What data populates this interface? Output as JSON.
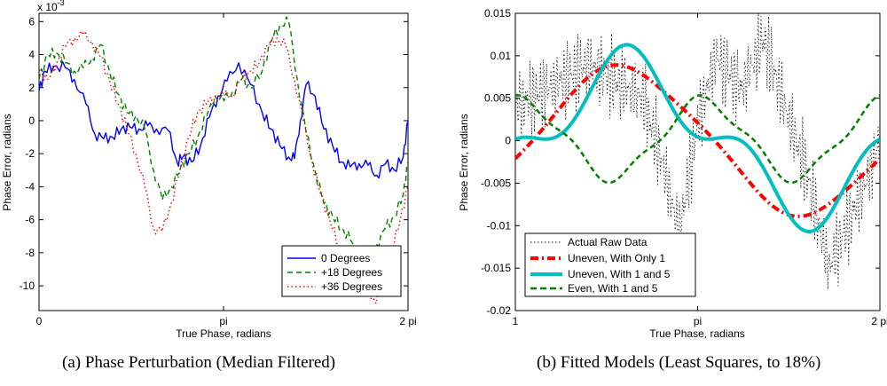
{
  "chart_data": [
    {
      "id": "a",
      "type": "line",
      "caption": "(a)  Phase Perturbation (Median Filtered)",
      "xlabel": "True Phase, radians",
      "ylabel": "Phase Error, radians",
      "exponent_label": "x 10",
      "exponent_power": "-3",
      "xlim": [
        0,
        6.2832
      ],
      "ylim": [
        -11.5,
        6.5
      ],
      "xticks": [
        {
          "v": 0,
          "label": "0"
        },
        {
          "v": 3.1416,
          "label": "pi"
        },
        {
          "v": 6.2832,
          "label": "2 pi"
        }
      ],
      "yticks": [
        {
          "v": 6,
          "label": "6"
        },
        {
          "v": 4,
          "label": "4"
        },
        {
          "v": 2,
          "label": "2"
        },
        {
          "v": 0,
          "label": "0"
        },
        {
          "v": -2,
          "label": "-2"
        },
        {
          "v": -4,
          "label": "-4"
        },
        {
          "v": -6,
          "label": "-6"
        },
        {
          "v": -8,
          "label": "-8"
        },
        {
          "v": -10,
          "label": "-10"
        }
      ],
      "legend_position": "bottom-right",
      "series": [
        {
          "name": "0 Degrees",
          "color": "#0000ff",
          "dash": "solid",
          "x": [
            0,
            0.1,
            0.25,
            0.45,
            0.6,
            0.8,
            0.95,
            1.1,
            1.25,
            1.4,
            1.55,
            1.7,
            1.85,
            2.0,
            2.2,
            2.35,
            2.45,
            2.6,
            2.75,
            2.9,
            3.05,
            3.2,
            3.4,
            3.6,
            3.8,
            3.95,
            4.1,
            4.25,
            4.35,
            4.45,
            4.55,
            4.7,
            4.85,
            5.0,
            5.15,
            5.3,
            5.45,
            5.6,
            5.75,
            5.9,
            6.05,
            6.2,
            6.2832
          ],
          "y": [
            1.8,
            3.0,
            3.3,
            3.2,
            2.5,
            1.0,
            -0.8,
            -1.1,
            -1.0,
            -0.5,
            -0.4,
            -0.5,
            -0.3,
            -0.5,
            -0.6,
            -2.5,
            -2.2,
            -2.5,
            -1.5,
            0.2,
            1.5,
            2.4,
            3.5,
            2.2,
            0.5,
            -0.5,
            -1.5,
            -2.2,
            -2.3,
            0.0,
            2.2,
            1.5,
            -0.5,
            -1.5,
            -2.5,
            -2.8,
            -2.6,
            -2.7,
            -3.3,
            -2.6,
            -3.0,
            -2.2,
            0.0
          ]
        },
        {
          "name": "+18 Degrees",
          "color": "#008000",
          "dash": "dashed",
          "x": [
            0,
            0.15,
            0.3,
            0.45,
            0.6,
            0.75,
            0.9,
            1.05,
            1.2,
            1.35,
            1.5,
            1.65,
            1.8,
            1.95,
            2.1,
            2.25,
            2.4,
            2.55,
            2.7,
            2.85,
            3.0,
            3.15,
            3.3,
            3.45,
            3.6,
            3.8,
            3.95,
            4.1,
            4.25,
            4.4,
            4.55,
            4.7,
            4.85,
            5.0,
            5.15,
            5.3,
            5.45,
            5.6,
            5.75,
            5.9,
            6.05,
            6.2,
            6.2832
          ],
          "y": [
            2.5,
            4.0,
            4.1,
            3.5,
            3.0,
            3.2,
            3.8,
            4.6,
            3.0,
            1.6,
            0.5,
            0.3,
            -0.5,
            -3.0,
            -4.8,
            -4.0,
            -3.0,
            -2.0,
            -1.0,
            0.2,
            1.5,
            1.2,
            1.8,
            2.5,
            2.0,
            3.0,
            4.8,
            5.8,
            6.0,
            2.5,
            -0.8,
            -3.0,
            -5.0,
            -5.8,
            -6.5,
            -7.2,
            -8.5,
            -8.8,
            -7.5,
            -6.5,
            -5.8,
            -4.5,
            -2.5
          ]
        },
        {
          "name": "+36 Degrees",
          "color": "#ff0000",
          "dash": "dotted",
          "x": [
            0,
            0.15,
            0.3,
            0.45,
            0.6,
            0.75,
            0.9,
            1.05,
            1.2,
            1.35,
            1.5,
            1.65,
            1.8,
            1.95,
            2.1,
            2.25,
            2.4,
            2.55,
            2.7,
            2.85,
            3.0,
            3.15,
            3.3,
            3.45,
            3.6,
            3.75,
            3.9,
            4.05,
            4.2,
            4.35,
            4.5,
            4.65,
            4.8,
            4.95,
            5.1,
            5.25,
            5.4,
            5.55,
            5.7,
            5.85,
            6.0,
            6.15,
            6.2832
          ],
          "y": [
            3.0,
            2.5,
            3.5,
            4.5,
            5.0,
            5.2,
            4.8,
            3.8,
            2.5,
            1.0,
            -0.5,
            -2.0,
            -4.0,
            -6.5,
            -6.7,
            -5.0,
            -3.0,
            -1.0,
            0.5,
            1.0,
            1.5,
            1.5,
            1.6,
            2.5,
            3.0,
            3.5,
            4.5,
            5.0,
            4.5,
            2.5,
            0.0,
            -2.5,
            -4.5,
            -6.0,
            -7.5,
            -8.5,
            -9.5,
            -10.2,
            -10.8,
            -10.5,
            -8.0,
            -6.0,
            -4.0
          ]
        }
      ]
    },
    {
      "id": "b",
      "type": "line",
      "caption": "(b)  Fitted Models (Least Squares, to 18%)",
      "xlabel": "True Phase, radians",
      "ylabel": "Phase Error, radians",
      "xlim": [
        1,
        2.0
      ],
      "ylim": [
        -0.02,
        0.015
      ],
      "xticks": [
        {
          "v": 1,
          "label": "1"
        },
        {
          "v": 1.5,
          "label": "pi"
        },
        {
          "v": 2.0,
          "label": "2 pi"
        }
      ],
      "yticks": [
        {
          "v": 0.015,
          "label": "0.015"
        },
        {
          "v": 0.01,
          "label": "0.01"
        },
        {
          "v": 0.005,
          "label": "0.005"
        },
        {
          "v": 0,
          "label": "0"
        },
        {
          "v": -0.005,
          "label": "-0.005"
        },
        {
          "v": -0.01,
          "label": "-0.01"
        },
        {
          "v": -0.015,
          "label": "-0.015"
        },
        {
          "v": -0.02,
          "label": "-0.02"
        }
      ],
      "legend_position": "bottom-left",
      "raw_series": {
        "name": "Actual Raw Data",
        "color": "#000000",
        "dash": "dotted",
        "points": [
          [
            1.0,
            0.004
          ],
          [
            1.2,
            0.009
          ],
          [
            1.35,
            0.005
          ],
          [
            1.4,
            -0.002
          ],
          [
            1.45,
            -0.011
          ],
          [
            1.5,
            0.002
          ],
          [
            1.55,
            0.01
          ],
          [
            1.62,
            0.006
          ],
          [
            1.68,
            0.012
          ],
          [
            1.74,
            0.004
          ],
          [
            1.8,
            -0.004
          ],
          [
            1.86,
            -0.015
          ],
          [
            1.92,
            -0.009
          ],
          [
            1.97,
            -0.004
          ],
          [
            2.0,
            0.0
          ]
        ]
      },
      "series": [
        {
          "name": "Uneven, With Only 1",
          "color": "#ff0000",
          "dash": "dashdot",
          "width": 4,
          "model": "a"
        },
        {
          "name": "Uneven, With 1 and 5",
          "color": "#00bfbf",
          "dash": "solid",
          "width": 4,
          "model": "b"
        },
        {
          "name": "Even, With 1 and 5",
          "color": "#008000",
          "dash": "dashed",
          "width": 2.5,
          "model": "c"
        }
      ]
    }
  ]
}
